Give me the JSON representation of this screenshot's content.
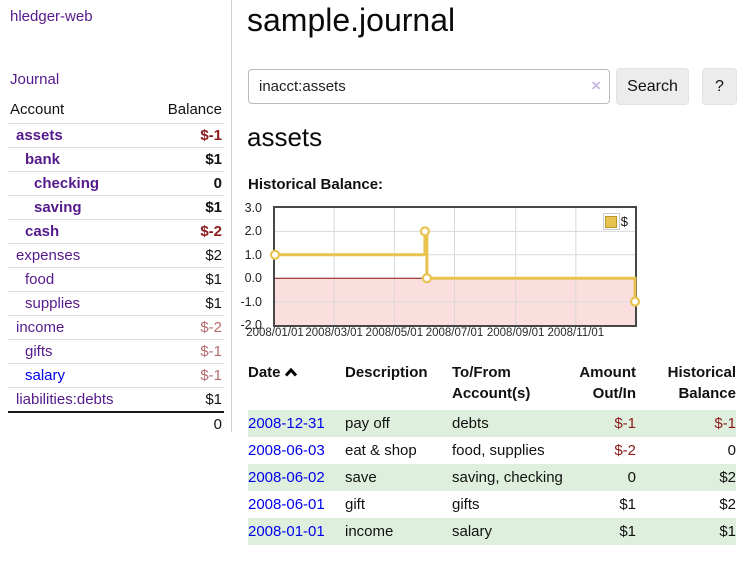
{
  "app": {
    "title": "hledger-web"
  },
  "sidebar": {
    "journal_link": "Journal",
    "headers": {
      "account": "Account",
      "balance": "Balance"
    },
    "rows": [
      {
        "name": "assets",
        "balance": "$-1"
      },
      {
        "name": "bank",
        "balance": "$1"
      },
      {
        "name": "checking",
        "balance": "0"
      },
      {
        "name": "saving",
        "balance": "$1"
      },
      {
        "name": "cash",
        "balance": "$-2"
      },
      {
        "name": "expenses",
        "balance": "$2"
      },
      {
        "name": "food",
        "balance": "$1"
      },
      {
        "name": "supplies",
        "balance": "$1"
      },
      {
        "name": "income",
        "balance": "$-2"
      },
      {
        "name": "gifts",
        "balance": "$-1"
      },
      {
        "name": "salary",
        "balance": "$-1"
      },
      {
        "name": "liabilities:debts",
        "balance": "$1"
      }
    ],
    "total": "0"
  },
  "main": {
    "title": "sample.journal",
    "search": {
      "value": "inacct:assets",
      "clear_icon": "×",
      "search_button": "Search",
      "help_button": "?"
    },
    "account_heading": "assets",
    "chart_label": "Historical Balance:"
  },
  "chart_data": {
    "type": "line",
    "step": true,
    "title": "Historical Balance",
    "x_range": [
      "2008-01-01",
      "2008-12-31"
    ],
    "ylim": [
      -2,
      3
    ],
    "y_ticks": [
      "3.0",
      "2.0",
      "1.0",
      "0.0",
      "-1.0",
      "-2.0"
    ],
    "x_tick_labels": [
      "2008/01/01",
      "2008/03/01",
      "2008/05/01",
      "2008/07/01",
      "2008/09/01",
      "2008/11/01"
    ],
    "series": [
      {
        "name": "$",
        "color": "#e9c34f",
        "points": [
          [
            "2008-01-01",
            1
          ],
          [
            "2008-06-01",
            2
          ],
          [
            "2008-06-03",
            0
          ],
          [
            "2008-12-31",
            -1
          ]
        ]
      }
    ],
    "negative_fill": "#fbdede",
    "zero_line_color": "#8f1010",
    "grid_color": "#d9d9d9",
    "legend_position": "top-right"
  },
  "register": {
    "headers": [
      "Date",
      "Description",
      "To/From Account(s)",
      "Amount Out/In",
      "Historical Balance"
    ],
    "rows": [
      {
        "date": "2008-12-31",
        "description": "pay off",
        "accounts": "debts",
        "amount": "$-1",
        "balance": "$-1"
      },
      {
        "date": "2008-06-03",
        "description": "eat & shop",
        "accounts": "food, supplies",
        "amount": "$-2",
        "balance": "0"
      },
      {
        "date": "2008-06-02",
        "description": "save",
        "accounts": "saving, checking",
        "amount": "0",
        "balance": "$2"
      },
      {
        "date": "2008-06-01",
        "description": "gift",
        "accounts": "gifts",
        "amount": "$1",
        "balance": "$2"
      },
      {
        "date": "2008-01-01",
        "description": "income",
        "accounts": "salary",
        "amount": "$1",
        "balance": "$1"
      }
    ]
  }
}
